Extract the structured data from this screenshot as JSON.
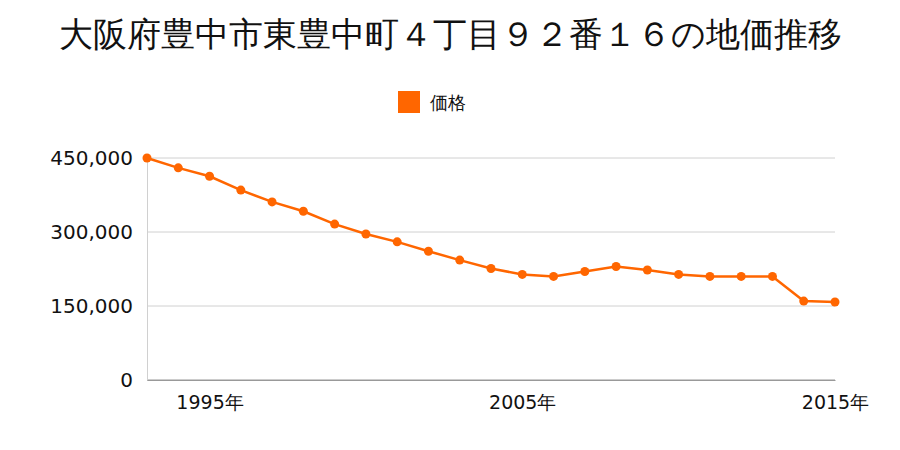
{
  "chart_data": {
    "type": "line",
    "title": "大阪府豊中市東豊中町４丁目９２番１６の地価推移",
    "x": [
      1993,
      1994,
      1995,
      1996,
      1997,
      1998,
      1999,
      2000,
      2001,
      2002,
      2003,
      2004,
      2005,
      2006,
      2007,
      2008,
      2009,
      2010,
      2011,
      2012,
      2013,
      2014,
      2015
    ],
    "series": [
      {
        "name": "価格",
        "color": "#ff6600",
        "marker": "circle",
        "values": [
          450000,
          430000,
          413000,
          385000,
          361000,
          342000,
          316000,
          296000,
          280000,
          261000,
          243000,
          226000,
          214000,
          210000,
          220000,
          230000,
          223000,
          214000,
          210000,
          210000,
          210000,
          160000,
          158000
        ]
      }
    ],
    "xlim": [
      1993,
      2015
    ],
    "xticks": [
      {
        "value": 1995,
        "label": "1995年"
      },
      {
        "value": 2005,
        "label": "2005年"
      },
      {
        "value": 2015,
        "label": "2015年"
      }
    ],
    "ylim": [
      0,
      450000
    ],
    "yticks": [
      0,
      {
        "value": 150000,
        "label": "150,000"
      },
      {
        "value": 300000,
        "label": "300,000"
      },
      {
        "value": 450000,
        "label": "450,000"
      }
    ],
    "grid": true,
    "legend": "top"
  }
}
